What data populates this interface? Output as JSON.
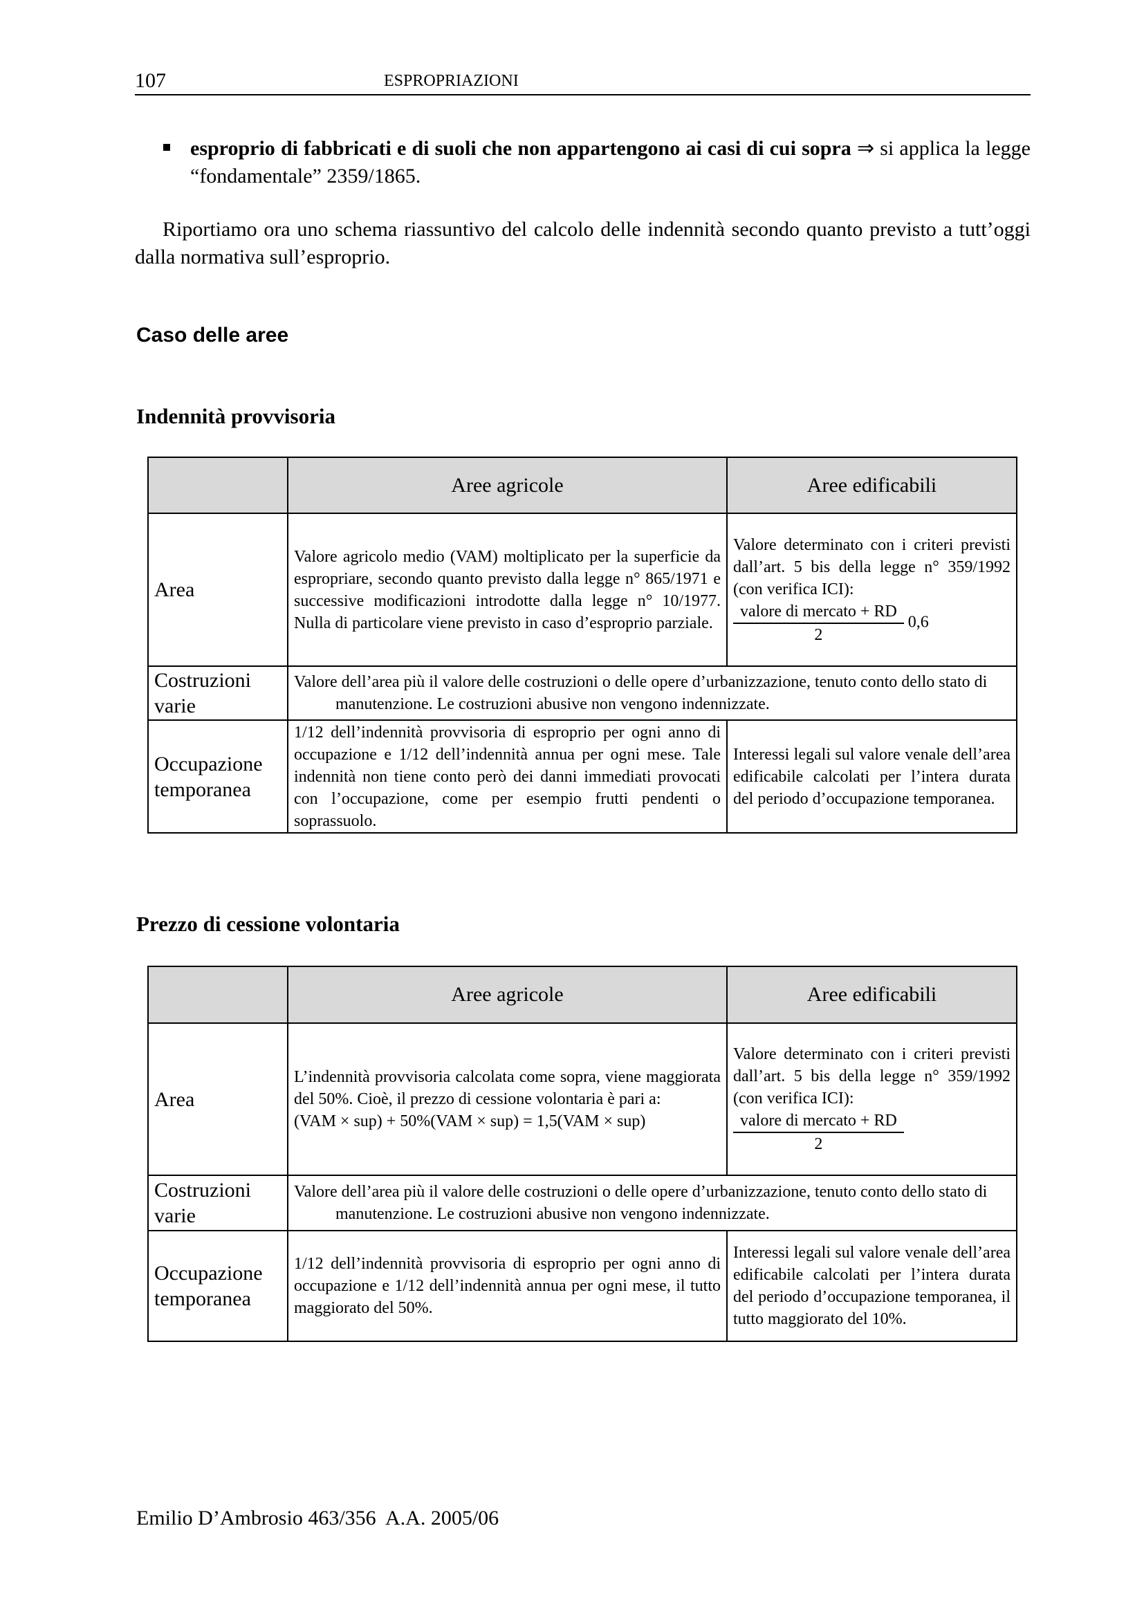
{
  "header": {
    "page_number": "107",
    "title": "ESPROPRIAZIONI"
  },
  "bullet": {
    "bold": "esproprio di fabbricati e di suoli che non appartengono ai casi di cui sopra",
    "arrow": "⇒",
    "rest": " si applica la legge “fondamentale” 2359/1865."
  },
  "paragraph": "Riportiamo ora uno schema riassuntivo del calcolo delle indennità secondo quanto previsto a tutt’oggi dalla normativa sull’esproprio.",
  "section_heading": "Caso delle aree",
  "tables": [
    {
      "heading": "Indennità provvisoria",
      "col_headers": [
        "",
        "Aree agricole",
        "Aree edificabili"
      ],
      "rows": {
        "area": {
          "label": "Area",
          "agricole": "Valore agricolo medio (VAM) moltiplicato per la superficie da espropriare, secondo quanto previsto dalla legge n° 865/1971 e successive modificazioni introdotte dalla legge n° 10/1977. Nulla di particolare viene previsto in caso d’esproprio parziale.",
          "edificabili": "Valore determinato con i criteri previsti dall’art. 5 bis della legge n° 359/1992 (con verifica ICI):",
          "numerator": "valore di mercato + RD",
          "denominator": "2",
          "factor": "0,6"
        },
        "costruzioni": {
          "label": "Costruzioni varie",
          "text": "Valore dell’area più il valore delle costruzioni o delle opere d’urbanizzazione, tenuto conto dello stato di manutenzione. Le costruzioni abusive non vengono indennizzate."
        },
        "occupazione": {
          "label": "Occupazione temporanea",
          "agricole": "1/12 dell’indennità provvisoria di esproprio per ogni anno di occupazione e 1/12 dell’indennità annua per ogni mese. Tale indennità non tiene conto però dei danni immediati provocati con l’occupazione, come per esempio frutti pendenti o soprassuolo.",
          "edificabili": "Interessi legali sul valore venale dell’area edificabile calcolati per l’intera durata del periodo d’occupazione temporanea."
        }
      }
    },
    {
      "heading": "Prezzo di cessione volontaria",
      "col_headers": [
        "",
        "Aree agricole",
        "Aree edificabili"
      ],
      "rows": {
        "area": {
          "label": "Area",
          "agricole": "L’indennità provvisoria calcolata come sopra, viene maggiorata del 50%. Cioè, il prezzo di cessione volontaria è pari a:",
          "formula": "(VAM × sup) + 50%(VAM × sup) = 1,5(VAM × sup)",
          "edificabili": "Valore determinato con i criteri previsti dall’art. 5 bis della legge n° 359/1992 (con verifica ICI):",
          "numerator": "valore di mercato + RD",
          "denominator": "2"
        },
        "costruzioni": {
          "label": "Costruzioni varie",
          "text": "Valore dell’area più il valore delle costruzioni o delle opere d’urbanizzazione, tenuto conto dello stato di manutenzione. Le costruzioni abusive non vengono indennizzate."
        },
        "occupazione": {
          "label": "Occupazione temporanea",
          "agricole": "1/12 dell’indennità provvisoria di esproprio per ogni anno di occupazione e 1/12 dell’indennità annua per ogni mese, il tutto maggiorato del 50%.",
          "edificabili": "Interessi legali sul valore venale dell’area edificabile calcolati per l’intera durata del periodo d’occupazione temporanea, il tutto maggiorato del 10%."
        }
      }
    }
  ],
  "footer": "Emilio D’Ambrosio 463/356  A.A. 2005/06"
}
